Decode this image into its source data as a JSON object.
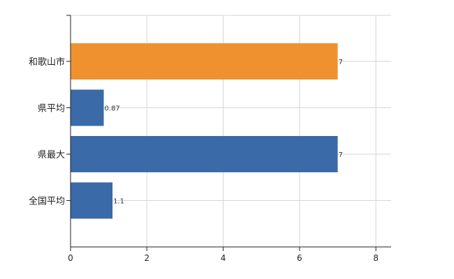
{
  "chart_data": {
    "type": "bar",
    "orientation": "horizontal",
    "categories": [
      "和歌山市",
      "県平均",
      "県最大",
      "全国平均"
    ],
    "values": [
      7,
      0.87,
      7,
      1.1
    ],
    "value_labels": [
      "7",
      "0.87",
      "7",
      "1.1"
    ],
    "bar_colors": [
      "#f0912f",
      "#3a6aa8",
      "#3a6aa8",
      "#3a6aa8"
    ],
    "xlim": [
      0,
      8.4
    ],
    "xticks": [
      0,
      2,
      4,
      6,
      8
    ],
    "grid": true,
    "title": "",
    "xlabel": "",
    "ylabel": ""
  }
}
